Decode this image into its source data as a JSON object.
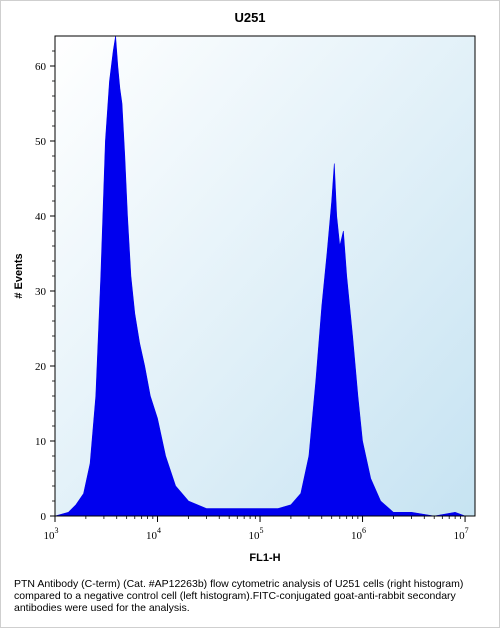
{
  "caption": "PTN Antibody (C-term) (Cat. #AP12263b) flow cytometric analysis of U251 cells (right histogram) compared to a negative control cell (left histogram).FITC-conjugated goat-anti-rabbit secondary antibodies were used for the analysis.",
  "colors": {
    "histogram": "#0000ee",
    "plot_bg_light": "#ffffff",
    "plot_bg_dark": "#c6e3f2"
  },
  "chart_data": {
    "type": "area",
    "title": "U251",
    "xlabel": "FL1-H",
    "ylabel": "# Events",
    "x_scale": "log",
    "xlim": [
      1000,
      12500000
    ],
    "ylim": [
      0,
      64
    ],
    "x_ticks": [
      {
        "base": "10",
        "exp": "3"
      },
      {
        "base": "10",
        "exp": "4"
      },
      {
        "base": "10",
        "exp": "5"
      },
      {
        "base": "10",
        "exp": "6"
      },
      {
        "base": "10",
        "exp": "7"
      }
    ],
    "y_ticks": [
      "0",
      "10",
      "20",
      "30",
      "40",
      "50",
      "60"
    ],
    "grid": false,
    "legend": "none",
    "series": [
      {
        "x": [
          1000,
          1350,
          1600,
          1900,
          2200,
          2500,
          2800,
          3100,
          3400,
          3700,
          3900,
          4100,
          4300,
          4500,
          4800,
          5100,
          5500,
          6000,
          6700,
          7500,
          8500,
          10000,
          12000,
          15000,
          20000,
          30000,
          50000,
          80000,
          100000,
          150000,
          200000,
          250000,
          300000,
          350000,
          400000,
          450000,
          500000,
          530000,
          560000,
          600000,
          650000,
          700000,
          800000,
          900000,
          1000000,
          1200000,
          1500000,
          2000000,
          3000000,
          5000000,
          8000000,
          10000000
        ],
        "values": [
          0,
          0.5,
          1.5,
          3,
          7,
          16,
          32,
          50,
          58,
          62,
          64,
          60,
          57,
          55,
          48,
          40,
          32,
          27,
          23,
          20,
          16,
          13,
          8,
          4,
          2,
          1,
          1,
          1,
          1,
          1,
          1.5,
          3,
          8,
          18,
          28,
          35,
          42,
          47,
          40,
          36,
          38,
          32,
          24,
          16,
          10,
          5,
          2,
          0.5,
          0.5,
          0,
          0.5,
          0
        ]
      }
    ]
  }
}
